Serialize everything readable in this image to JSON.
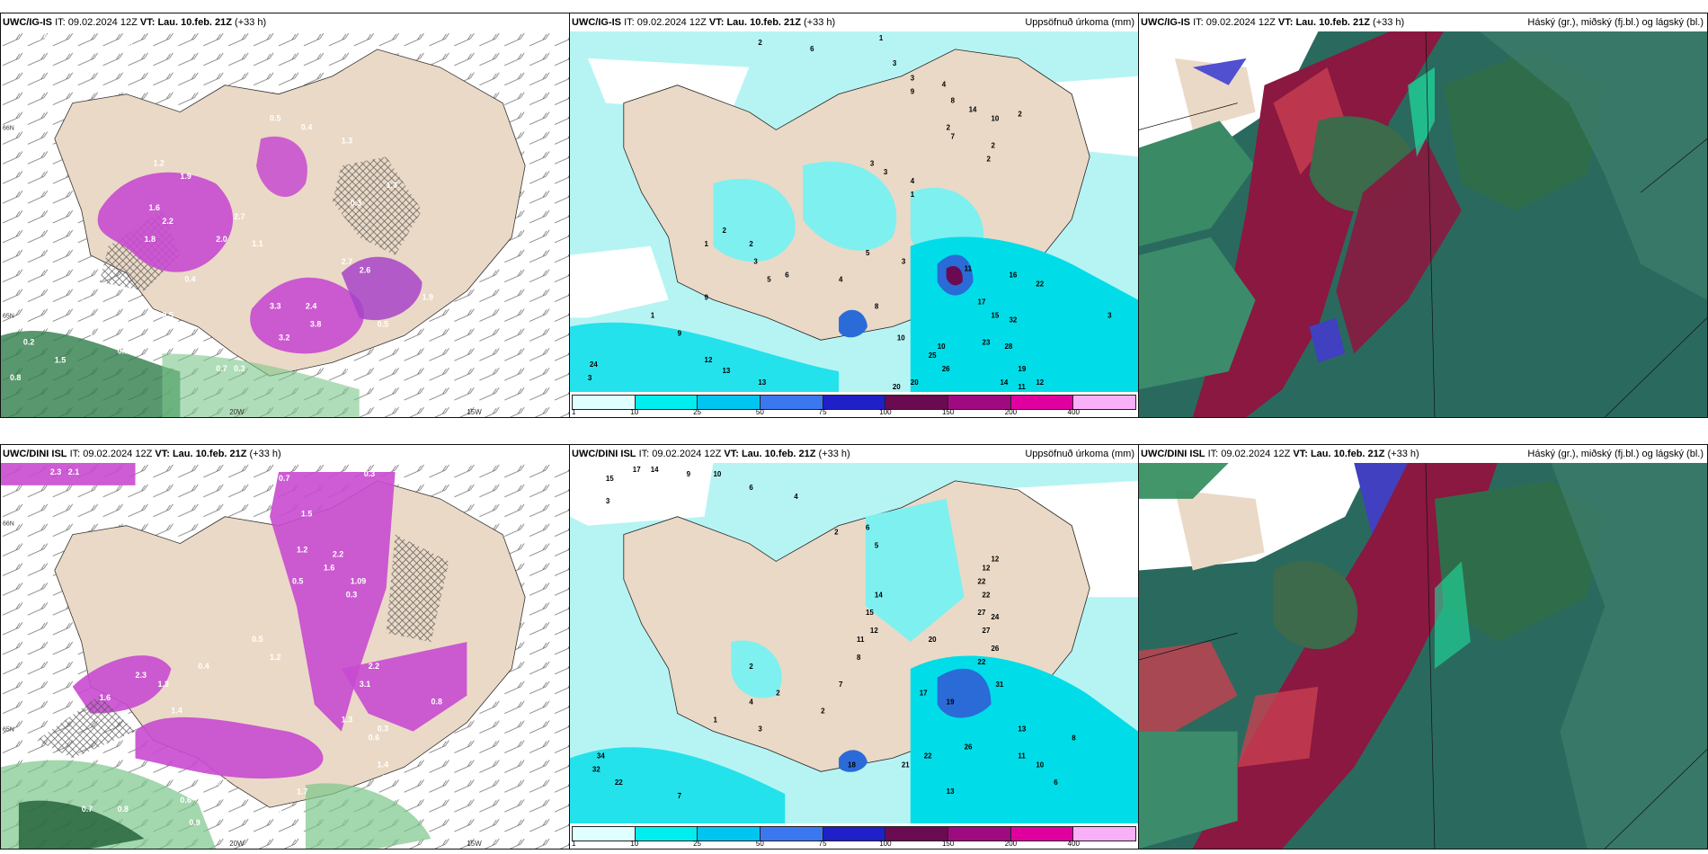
{
  "panels": [
    {
      "id": "top-left",
      "header": {
        "model": "UWC/IG-IS",
        "it_label": "IT:",
        "it_value": "09.02.2024 12Z",
        "vt_label": "VT:",
        "vt_value": "Lau. 10.feb. 21Z",
        "lead": "(+33 h)",
        "title_right": ""
      },
      "axis_labels": [
        "66N",
        "65N",
        "20W",
        "15W"
      ],
      "values": [
        "0.5",
        "1.4",
        "0.5",
        "0.4",
        "1.3",
        "1.2",
        "1.9",
        "1.6",
        "2.2",
        "1.8",
        "2.7",
        "2.0",
        "1.1",
        "0.4",
        "0.3",
        "2.7",
        "2.6",
        "3.3",
        "3.8",
        "2.4",
        "3.2",
        "0.3",
        "0.4",
        "0.7",
        "0.7",
        "0.7",
        "1.6",
        "1.0",
        "0.5",
        "1.9",
        "1.3",
        "0.2",
        "0.8",
        "1.5",
        "0.5",
        "0.4"
      ]
    },
    {
      "id": "top-middle",
      "header": {
        "model": "UWC/IG-IS",
        "it_label": "IT:",
        "it_value": "09.02.2024 12Z",
        "vt_label": "VT:",
        "vt_value": "Lau. 10.feb. 21Z",
        "lead": "(+33 h)",
        "title_right": "Uppsöfnuð úrkoma (mm)"
      },
      "values": [
        "2",
        "1",
        "6",
        "3",
        "3",
        "4",
        "9",
        "8",
        "7",
        "14",
        "10",
        "2",
        "2",
        "2",
        "2",
        "3",
        "3",
        "4",
        "1",
        "2",
        "1",
        "2",
        "3",
        "5",
        "6",
        "8",
        "4",
        "3",
        "10",
        "10",
        "5",
        "11",
        "17",
        "16",
        "15",
        "22",
        "32",
        "28",
        "23",
        "19",
        "26",
        "25",
        "20",
        "20",
        "13",
        "12",
        "24",
        "9",
        "1",
        "3",
        "9",
        "13",
        "11",
        "14",
        "12",
        "3"
      ],
      "colorbar": {
        "ticks": [
          "1",
          "10",
          "25",
          "50",
          "75",
          "100",
          "150",
          "200",
          "400"
        ],
        "colors": [
          "#e0ffff",
          "#00eeee",
          "#00c5f0",
          "#3b78f0",
          "#2020c8",
          "#6a0a50",
          "#a00a80",
          "#e000a0",
          "#f8b0f8"
        ]
      }
    },
    {
      "id": "top-right",
      "header": {
        "model": "UWC/IG-IS",
        "it_label": "IT:",
        "it_value": "09.02.2024 12Z",
        "vt_label": "VT:",
        "vt_value": "Lau. 10.feb. 21Z",
        "lead": "(+33 h)",
        "title_right": "Háský (gr.), miðský (fj.bl.) og lágský (bl.)"
      }
    },
    {
      "id": "bottom-left",
      "header": {
        "model": "UWC/DINI ISL",
        "it_label": "IT:",
        "it_value": "09.02.2024 12Z",
        "vt_label": "VT:",
        "vt_value": "Lau. 10.feb. 21Z",
        "lead": "(+33 h)",
        "title_right": ""
      },
      "axis_labels": [
        "66N",
        "65N",
        "20W",
        "15W"
      ],
      "values": [
        "2.3",
        "2.1",
        "0.7",
        "0.3",
        "0.7",
        "1.5",
        "2.2",
        "1.6",
        "1.09",
        "0.3",
        "1.2",
        "0.5",
        "2.3",
        "1.6",
        "1.4",
        "1.3",
        "0.4",
        "0.5",
        "1.2",
        "3.1",
        "2.2",
        "1.3",
        "0.3",
        "0.6",
        "0.6",
        "0.7",
        "0.8",
        "0.9",
        "0.6",
        "1.4",
        "3.0",
        "2.6",
        "1.7",
        "2.7",
        "0.8"
      ]
    },
    {
      "id": "bottom-middle",
      "header": {
        "model": "UWC/DINI ISL",
        "it_label": "IT:",
        "it_value": "09.02.2024 12Z",
        "vt_label": "VT:",
        "vt_value": "Lau. 10.feb. 21Z",
        "lead": "(+33 h)",
        "title_right": "Uppsöfnuð úrkoma (mm)"
      },
      "values": [
        "15",
        "17",
        "14",
        "9",
        "10",
        "3",
        "6",
        "4",
        "2",
        "6",
        "5",
        "12",
        "12",
        "22",
        "22",
        "27",
        "24",
        "27",
        "26",
        "22",
        "31",
        "20",
        "17",
        "19",
        "13",
        "14",
        "15",
        "12",
        "11",
        "8",
        "7",
        "2",
        "34",
        "32",
        "22",
        "7",
        "4",
        "3",
        "1",
        "18",
        "21",
        "22",
        "26",
        "13",
        "11",
        "10",
        "8",
        "6",
        "2",
        "2"
      ],
      "colorbar": {
        "ticks": [
          "1",
          "10",
          "25",
          "50",
          "75",
          "100",
          "150",
          "200",
          "400"
        ],
        "colors": [
          "#e0ffff",
          "#00eeee",
          "#00c5f0",
          "#3b78f0",
          "#2020c8",
          "#6a0a50",
          "#a00a80",
          "#e000a0",
          "#f8b0f8"
        ]
      }
    },
    {
      "id": "bottom-right",
      "header": {
        "model": "UWC/DINI ISL",
        "it_label": "IT:",
        "it_value": "09.02.2024 12Z",
        "vt_label": "VT:",
        "vt_value": "Lau. 10.feb. 21Z",
        "lead": "(+33 h)",
        "title_right": "Háský (gr.), miðský (fj.bl.) og lágský (bl.)"
      }
    }
  ],
  "colors": {
    "land": "#ead9c6",
    "sea_light": "#b6f4f4",
    "sea_cyan": "#00e8e8",
    "purple": "#c84ad0",
    "green": "#2f6d4a",
    "maroon": "#8a1840",
    "teal": "#2a6a5e"
  }
}
